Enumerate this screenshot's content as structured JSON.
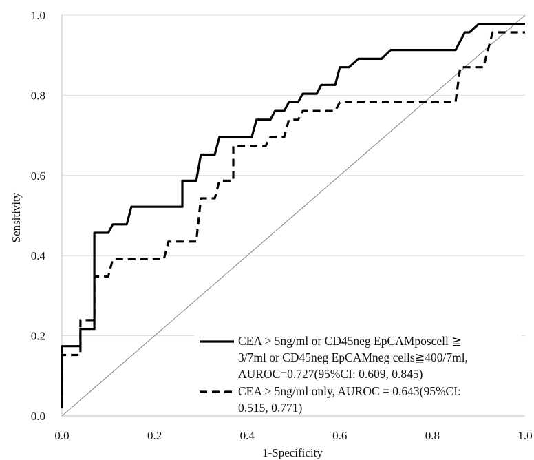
{
  "chart_data": {
    "type": "line",
    "title": "",
    "xlabel": "1-Specificity",
    "ylabel": "Sensitivity",
    "xlim": [
      0,
      1
    ],
    "ylim": [
      0,
      1
    ],
    "x_ticks": [
      "0.0",
      "0.2",
      "0.4",
      "0.6",
      "0.8",
      "1.0"
    ],
    "y_ticks": [
      "0.0",
      "0.2",
      "0.4",
      "0.6",
      "0.8",
      "1.0"
    ],
    "grid": "horizontal",
    "legend_position": "bottom-right",
    "reference_line": {
      "x": [
        0,
        1
      ],
      "y": [
        0,
        1
      ]
    },
    "series": [
      {
        "legend_lines": [
          "CEA > 5ng/ml or CD45neg EpCAMposcell ≧",
          "3/7ml or CD45neg EpCAMneg cells≧400/7ml,",
          "AUROC=0.727(95%CI: 0.609, 0.845)"
        ],
        "style": "solid",
        "color": "#000000",
        "x": [
          0,
          0,
          0.04,
          0.04,
          0.07,
          0.07,
          0.1,
          0.11,
          0.14,
          0.15,
          0.26,
          0.26,
          0.29,
          0.3,
          0.33,
          0.34,
          0.41,
          0.42,
          0.45,
          0.46,
          0.48,
          0.49,
          0.51,
          0.52,
          0.55,
          0.56,
          0.59,
          0.6,
          0.62,
          0.64,
          0.69,
          0.71,
          0.85,
          0.87,
          0.88,
          0.9,
          1.0
        ],
        "y": [
          0.02,
          0.174,
          0.174,
          0.217,
          0.217,
          0.457,
          0.457,
          0.478,
          0.478,
          0.522,
          0.522,
          0.587,
          0.587,
          0.652,
          0.652,
          0.696,
          0.696,
          0.739,
          0.739,
          0.761,
          0.761,
          0.783,
          0.783,
          0.804,
          0.804,
          0.826,
          0.826,
          0.87,
          0.87,
          0.891,
          0.891,
          0.913,
          0.913,
          0.957,
          0.957,
          0.978,
          0.978
        ]
      },
      {
        "legend_lines": [
          "CEA > 5ng/ml only, AUROC = 0.643(95%CI:",
          "0.515, 0.771)"
        ],
        "style": "dashed",
        "color": "#000000",
        "x": [
          0,
          0,
          0.04,
          0.04,
          0.07,
          0.07,
          0.1,
          0.11,
          0.22,
          0.23,
          0.29,
          0.3,
          0.33,
          0.34,
          0.37,
          0.37,
          0.44,
          0.45,
          0.48,
          0.49,
          0.51,
          0.52,
          0.59,
          0.6,
          0.85,
          0.86,
          0.89,
          0.9,
          0.91,
          0.93,
          1.0
        ],
        "y": [
          0.02,
          0.152,
          0.152,
          0.239,
          0.239,
          0.348,
          0.348,
          0.391,
          0.391,
          0.435,
          0.435,
          0.543,
          0.543,
          0.587,
          0.587,
          0.674,
          0.674,
          0.696,
          0.696,
          0.739,
          0.739,
          0.761,
          0.761,
          0.783,
          0.783,
          0.87,
          0.87,
          0.87,
          0.87,
          0.957,
          0.957
        ]
      }
    ]
  }
}
